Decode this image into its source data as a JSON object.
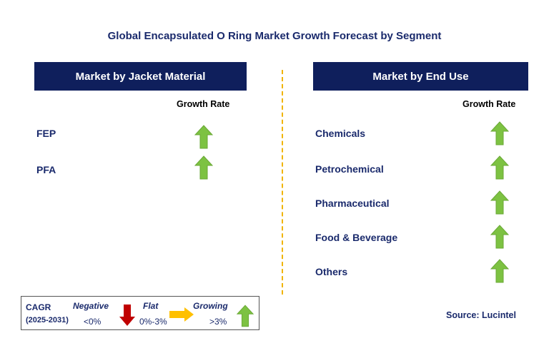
{
  "title": "Global Encapsulated O Ring Market Growth Forecast by Segment",
  "left_panel": {
    "header": "Market by Jacket Material",
    "growth_label": "Growth Rate",
    "segments": [
      {
        "label": "FEP",
        "trend": "growing"
      },
      {
        "label": "PFA",
        "trend": "growing"
      }
    ]
  },
  "right_panel": {
    "header": "Market by End Use",
    "growth_label": "Growth Rate",
    "segments": [
      {
        "label": "Chemicals",
        "trend": "growing"
      },
      {
        "label": "Petrochemical",
        "trend": "growing"
      },
      {
        "label": "Pharmaceutical",
        "trend": "growing"
      },
      {
        "label": "Food & Beverage",
        "trend": "growing"
      },
      {
        "label": "Others",
        "trend": "growing"
      }
    ]
  },
  "legend": {
    "cagr_label": "CAGR",
    "period": "(2025-2031)",
    "negative": {
      "label": "Negative",
      "range": "<0%"
    },
    "flat": {
      "label": "Flat",
      "range": "0%-3%"
    },
    "growing": {
      "label": "Growing",
      "range": ">3%"
    }
  },
  "source": "Source: Lucintel",
  "colors": {
    "header_bg": "#0f1f5c",
    "growing": "#7dc242",
    "flat": "#ffc000",
    "negative": "#c00000",
    "divider": "#f0b400"
  },
  "icons": {
    "growing": "green-up-arrow-icon",
    "flat": "yellow-right-arrow-icon",
    "negative": "red-down-arrow-icon"
  }
}
